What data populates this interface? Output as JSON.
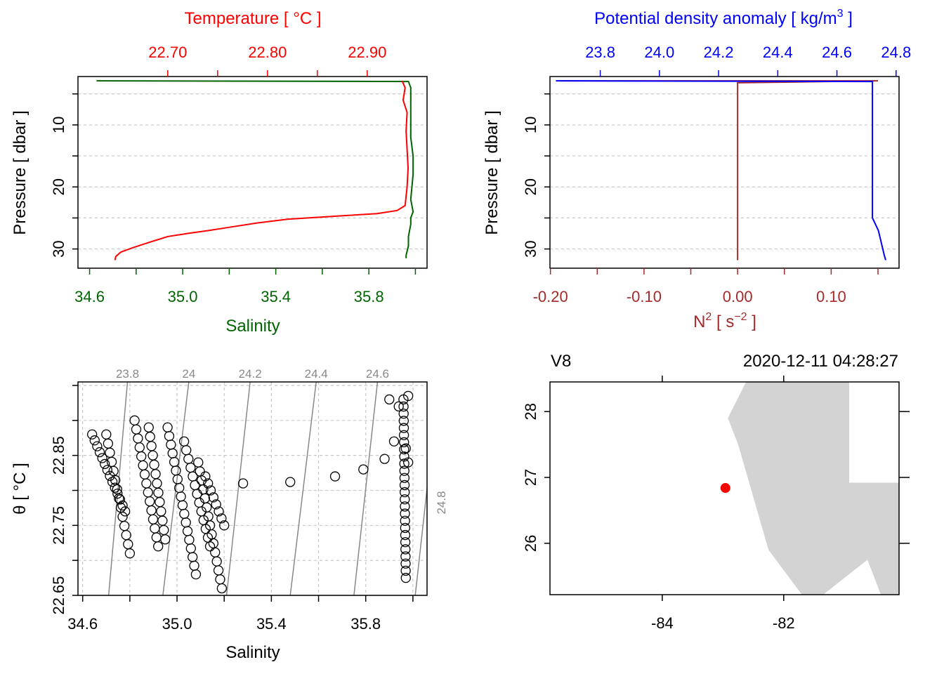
{
  "colors": {
    "temperature": "#ff0000",
    "salinity": "#006400",
    "density": "#0000ff",
    "n2": "#a52a2a",
    "grid": "#c8c8c8",
    "isopycnal": "#888888",
    "land": "#d3d3d3",
    "station": "#ff0000",
    "axis": "#000000"
  },
  "chart_data": [
    {
      "id": "ts-profile",
      "type": "line",
      "top_axis_title": "Temperature [ °C ]",
      "bottom_axis_title": "Salinity",
      "ylabel": "Pressure [ dbar ]",
      "top_ticks": [
        "22.70",
        "22.80",
        "22.90"
      ],
      "bottom_ticks": [
        "34.6",
        "35.0",
        "35.4",
        "35.8"
      ],
      "y_ticks": [
        "10",
        "20",
        "30"
      ],
      "xlim_temperature": [
        22.61,
        22.96
      ],
      "xlim_salinity": [
        34.55,
        36.05
      ],
      "ylim": [
        33.1,
        2.2
      ],
      "series": [
        {
          "name": "Salinity",
          "color_key": "salinity",
          "x": [
            34.63,
            35.97,
            35.98,
            35.98,
            35.98,
            35.99,
            35.99,
            35.98,
            35.99,
            35.98,
            35.98,
            35.97,
            35.97,
            35.96,
            35.96
          ],
          "y": [
            2.9,
            3.0,
            4.0,
            8.0,
            12.0,
            15.0,
            18.0,
            22.0,
            24.0,
            25.0,
            26.0,
            28.0,
            29.5,
            31.0,
            31.5
          ]
        },
        {
          "name": "Temperature",
          "color_key": "temperature",
          "x": [
            22.935,
            22.938,
            22.936,
            22.94,
            22.939,
            22.94,
            22.941,
            22.94,
            22.938,
            22.93,
            22.91,
            22.87,
            22.82,
            22.79,
            22.762,
            22.742,
            22.72,
            22.7,
            22.69,
            22.68,
            22.665,
            22.653,
            22.648,
            22.647
          ],
          "y": [
            2.9,
            4.0,
            6.0,
            8.0,
            11.0,
            14.0,
            17.0,
            20.0,
            23.0,
            23.8,
            24.3,
            24.7,
            25.2,
            25.8,
            26.5,
            27.0,
            27.5,
            28.0,
            28.5,
            29.0,
            29.8,
            30.5,
            31.2,
            31.8
          ]
        }
      ]
    },
    {
      "id": "density-n2-profile",
      "type": "line",
      "top_axis_title_text": "Potential density anomaly [ kg/m",
      "top_axis_title_sup": "3",
      "top_axis_title_end": " ]",
      "bottom_axis_title_text": "N",
      "bottom_axis_title_sup1": "2",
      "bottom_axis_title_mid": " [ s",
      "bottom_axis_title_sup2": "−2",
      "bottom_axis_title_end": " ]",
      "ylabel": "Pressure [ dbar ]",
      "top_ticks": [
        "23.8",
        "24.0",
        "24.2",
        "24.4",
        "24.6",
        "24.8"
      ],
      "bottom_ticks": [
        "-0.20",
        "-0.10",
        "0.00",
        "0.10"
      ],
      "y_ticks": [
        "10",
        "20",
        "30"
      ],
      "xlim_density": [
        23.63,
        24.81
      ],
      "xlim_n2": [
        -0.2005,
        0.1725
      ],
      "ylim": [
        33.1,
        2.2
      ],
      "series": [
        {
          "name": "Potential density anomaly",
          "color_key": "density",
          "x": [
            23.65,
            24.72,
            24.72,
            24.72,
            24.72,
            24.72,
            24.72,
            24.72,
            24.725,
            24.73,
            24.74,
            24.745,
            24.75,
            24.755,
            24.76,
            24.765
          ],
          "y": [
            2.9,
            3.0,
            8.0,
            15.0,
            20.0,
            24.0,
            24.5,
            25.0,
            25.5,
            26.0,
            27.0,
            28.0,
            29.0,
            30.0,
            31.0,
            31.8
          ]
        },
        {
          "name": "N2",
          "color_key": "n2",
          "x": [
            -0.19,
            0.15,
            0.0,
            0.0,
            0.0,
            0.0,
            0.0
          ],
          "y": [
            2.9,
            2.9,
            3.2,
            10.0,
            20.0,
            30.0,
            31.8
          ]
        }
      ]
    },
    {
      "id": "ts-diagram",
      "type": "scatter",
      "xlabel": "Salinity",
      "ylabel": "θ [ °C ]",
      "x_ticks": [
        "34.6",
        "35.0",
        "35.4",
        "35.8"
      ],
      "y_ticks": [
        "22.65",
        "22.75",
        "22.85"
      ],
      "xlim": [
        34.58,
        36.06
      ],
      "ylim": [
        22.65,
        22.955
      ],
      "isopycnals": [
        {
          "label": "23.8",
          "s0": 34.71,
          "s1": 34.79
        },
        {
          "label": "24",
          "s0": 34.94,
          "s1": 35.05
        },
        {
          "label": "24.2",
          "s0": 35.21,
          "s1": 35.31
        },
        {
          "label": "24.4",
          "s0": 35.48,
          "s1": 35.59
        },
        {
          "label": "24.6",
          "s0": 35.75,
          "s1": 35.85
        },
        {
          "label": "24.8",
          "s0": 36.01,
          "s1": 36.11
        }
      ],
      "clusters": [
        {
          "s_top": 34.64,
          "t_top": 22.88,
          "s_bot": 34.78,
          "t_bot": 22.77,
          "n": 14
        },
        {
          "s_top": 34.7,
          "t_top": 22.88,
          "s_bot": 34.8,
          "t_bot": 22.71,
          "n": 14
        },
        {
          "s_top": 34.82,
          "t_top": 22.9,
          "s_bot": 34.92,
          "t_bot": 22.72,
          "n": 15
        },
        {
          "s_top": 34.88,
          "t_top": 22.89,
          "s_bot": 34.95,
          "t_bot": 22.73,
          "n": 13
        },
        {
          "s_top": 34.96,
          "t_top": 22.89,
          "s_bot": 35.08,
          "t_bot": 22.68,
          "n": 18
        },
        {
          "s_top": 35.03,
          "t_top": 22.87,
          "s_bot": 35.14,
          "t_bot": 22.72,
          "n": 13
        },
        {
          "s_top": 35.09,
          "t_top": 22.84,
          "s_bot": 35.19,
          "t_bot": 22.66,
          "n": 15
        },
        {
          "s_top": 35.12,
          "t_top": 22.82,
          "s_bot": 35.2,
          "t_bot": 22.75,
          "n": 8
        },
        {
          "s_top": 35.96,
          "t_top": 22.93,
          "s_bot": 35.97,
          "t_bot": 22.675,
          "n": 26
        }
      ],
      "points": [
        {
          "s": 35.28,
          "t": 22.81
        },
        {
          "s": 35.48,
          "t": 22.812
        },
        {
          "s": 35.67,
          "t": 22.82
        },
        {
          "s": 35.79,
          "t": 22.83
        },
        {
          "s": 35.88,
          "t": 22.845
        },
        {
          "s": 35.92,
          "t": 22.87
        },
        {
          "s": 35.94,
          "t": 22.92
        },
        {
          "s": 35.9,
          "t": 22.93
        },
        {
          "s": 35.98,
          "t": 22.935
        },
        {
          "s": 35.97,
          "t": 22.86
        },
        {
          "s": 35.98,
          "t": 22.84
        }
      ]
    },
    {
      "id": "station-map",
      "type": "scatter",
      "station_label": "V8",
      "datetime": "2020-12-11 04:28:27",
      "x_ticks": [
        "-84",
        "-82"
      ],
      "y_ticks": [
        "26",
        "27",
        "28"
      ],
      "xlim": [
        -85.85,
        -80.1
      ],
      "ylim": [
        25.22,
        28.45
      ],
      "station": {
        "lon": -82.96,
        "lat": 26.84
      },
      "land": {
        "lon": [
          -82.62,
          -80.92,
          -80.92,
          -80.1,
          -80.1,
          -80.4,
          -80.62,
          -81.35,
          -81.7,
          -82.25,
          -82.75,
          -82.92
        ],
        "lat": [
          28.45,
          28.45,
          26.92,
          26.92,
          25.22,
          25.22,
          25.75,
          25.22,
          25.22,
          25.9,
          27.5,
          27.9
        ]
      }
    }
  ]
}
